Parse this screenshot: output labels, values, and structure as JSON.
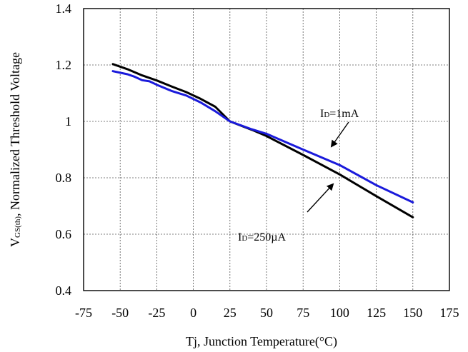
{
  "chart_data": {
    "type": "line",
    "xlabel": "Tj, Junction Temperature(°C)",
    "ylabel": "VGS(th), Normalized Threshold Voltage",
    "ylabel_main": "V",
    "ylabel_sub": "GS(th)",
    "ylabel_rest": ", Normalized Threshold Voltage",
    "xlim": [
      -75,
      175
    ],
    "ylim": [
      0.4,
      1.4
    ],
    "x_ticks": [
      -75,
      -50,
      -25,
      0,
      25,
      50,
      75,
      100,
      125,
      150,
      175
    ],
    "x_tick_labels": [
      "-75",
      "-50",
      "-25",
      "0",
      "25",
      "50",
      "75",
      "100",
      "125",
      "150",
      "175"
    ],
    "y_ticks": [
      0.4,
      0.6,
      0.8,
      1.0,
      1.2,
      1.4
    ],
    "y_tick_labels": [
      "0.4",
      "0.6",
      "0.8",
      "1",
      "1.2",
      "1.4"
    ],
    "grid": true,
    "series": [
      {
        "name": "ID=250µA",
        "color": "#000000",
        "x": [
          -55,
          -45,
          -35,
          -25,
          -15,
          -5,
          5,
          15,
          25,
          40,
          50,
          75,
          100,
          125,
          150
        ],
        "y": [
          1.203,
          1.185,
          1.163,
          1.145,
          1.124,
          1.104,
          1.08,
          1.052,
          1.0,
          0.97,
          0.948,
          0.881,
          0.812,
          0.735,
          0.66
        ]
      },
      {
        "name": "ID=1mA",
        "color": "#1a1adb",
        "x": [
          -55,
          -45,
          -40,
          -35,
          -30,
          -25,
          -15,
          -5,
          5,
          15,
          25,
          40,
          50,
          75,
          100,
          125,
          150
        ],
        "y": [
          1.178,
          1.167,
          1.158,
          1.146,
          1.142,
          1.13,
          1.108,
          1.092,
          1.067,
          1.036,
          1.0,
          0.972,
          0.956,
          0.9,
          0.845,
          0.774,
          0.713
        ]
      }
    ],
    "annotations": [
      {
        "series": 1,
        "label_main": "I",
        "label_sub": "D",
        "label_rest": "=1mA"
      },
      {
        "series": 0,
        "label_main": "I",
        "label_sub": "D",
        "label_rest": "=250µA"
      }
    ]
  }
}
